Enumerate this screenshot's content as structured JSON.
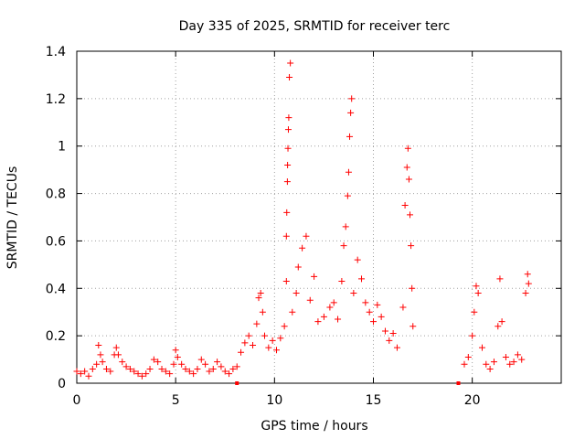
{
  "chart_data": {
    "type": "scatter",
    "title": "Day 335 of 2025, SRMTID for receiver terc",
    "xlabel": "GPS time / hours",
    "ylabel": "SRMTID / TECUs",
    "xlim": [
      0,
      24.5
    ],
    "ylim": [
      0,
      1.4
    ],
    "xticks": [
      0,
      5,
      10,
      15,
      20
    ],
    "yticks": [
      0,
      0.2,
      0.4,
      0.6,
      0.8,
      1,
      1.2,
      1.4
    ],
    "xtick_labels": [
      "0",
      "5",
      "10",
      "15",
      "20"
    ],
    "ytick_labels": [
      "0",
      "0.2",
      "0.4",
      "0.6",
      "0.8",
      "1",
      "1.2",
      "1.4"
    ],
    "grid": true,
    "marker": "plus",
    "color": "#ff0000",
    "series": [
      {
        "name": "SRMTID",
        "points": [
          [
            0.0,
            0.05
          ],
          [
            0.2,
            0.04
          ],
          [
            0.4,
            0.05
          ],
          [
            0.6,
            0.03
          ],
          [
            0.8,
            0.06
          ],
          [
            1.0,
            0.08
          ],
          [
            1.1,
            0.16
          ],
          [
            1.2,
            0.12
          ],
          [
            1.3,
            0.09
          ],
          [
            1.5,
            0.06
          ],
          [
            1.7,
            0.05
          ],
          [
            1.9,
            0.12
          ],
          [
            2.0,
            0.15
          ],
          [
            2.1,
            0.12
          ],
          [
            2.3,
            0.09
          ],
          [
            2.5,
            0.07
          ],
          [
            2.7,
            0.06
          ],
          [
            2.9,
            0.05
          ],
          [
            3.1,
            0.04
          ],
          [
            3.3,
            0.03
          ],
          [
            3.5,
            0.04
          ],
          [
            3.7,
            0.06
          ],
          [
            3.9,
            0.1
          ],
          [
            4.1,
            0.09
          ],
          [
            4.3,
            0.06
          ],
          [
            4.5,
            0.05
          ],
          [
            4.7,
            0.04
          ],
          [
            4.9,
            0.08
          ],
          [
            5.0,
            0.14
          ],
          [
            5.1,
            0.11
          ],
          [
            5.3,
            0.08
          ],
          [
            5.5,
            0.06
          ],
          [
            5.7,
            0.05
          ],
          [
            5.9,
            0.04
          ],
          [
            6.1,
            0.06
          ],
          [
            6.3,
            0.1
          ],
          [
            6.5,
            0.08
          ],
          [
            6.7,
            0.05
          ],
          [
            6.9,
            0.06
          ],
          [
            7.1,
            0.09
          ],
          [
            7.3,
            0.07
          ],
          [
            7.5,
            0.05
          ],
          [
            7.7,
            0.04
          ],
          [
            7.9,
            0.06
          ],
          [
            8.1,
            0.07
          ],
          [
            8.3,
            0.13
          ],
          [
            8.5,
            0.17
          ],
          [
            8.7,
            0.2
          ],
          [
            8.9,
            0.16
          ],
          [
            9.1,
            0.25
          ],
          [
            9.2,
            0.36
          ],
          [
            9.3,
            0.38
          ],
          [
            9.4,
            0.3
          ],
          [
            9.5,
            0.2
          ],
          [
            9.7,
            0.15
          ],
          [
            9.9,
            0.18
          ],
          [
            10.1,
            0.14
          ],
          [
            10.3,
            0.19
          ],
          [
            10.5,
            0.24
          ],
          [
            10.6,
            0.43
          ],
          [
            10.6,
            0.62
          ],
          [
            10.62,
            0.72
          ],
          [
            10.65,
            0.85
          ],
          [
            10.66,
            0.92
          ],
          [
            10.68,
            0.99
          ],
          [
            10.7,
            1.07
          ],
          [
            10.72,
            1.12
          ],
          [
            10.75,
            1.29
          ],
          [
            10.8,
            1.35
          ],
          [
            10.9,
            0.3
          ],
          [
            11.1,
            0.38
          ],
          [
            11.2,
            0.49
          ],
          [
            11.4,
            0.57
          ],
          [
            11.6,
            0.62
          ],
          [
            11.8,
            0.35
          ],
          [
            12.0,
            0.45
          ],
          [
            12.2,
            0.26
          ],
          [
            12.5,
            0.28
          ],
          [
            12.8,
            0.32
          ],
          [
            13.0,
            0.34
          ],
          [
            13.2,
            0.27
          ],
          [
            13.4,
            0.43
          ],
          [
            13.5,
            0.58
          ],
          [
            13.6,
            0.66
          ],
          [
            13.7,
            0.79
          ],
          [
            13.75,
            0.89
          ],
          [
            13.8,
            1.04
          ],
          [
            13.85,
            1.14
          ],
          [
            13.9,
            1.2
          ],
          [
            14.0,
            0.38
          ],
          [
            14.2,
            0.52
          ],
          [
            14.4,
            0.44
          ],
          [
            14.6,
            0.34
          ],
          [
            14.8,
            0.3
          ],
          [
            15.0,
            0.26
          ],
          [
            15.2,
            0.33
          ],
          [
            15.4,
            0.28
          ],
          [
            15.6,
            0.22
          ],
          [
            15.8,
            0.18
          ],
          [
            16.0,
            0.21
          ],
          [
            16.2,
            0.15
          ],
          [
            16.5,
            0.32
          ],
          [
            16.6,
            0.75
          ],
          [
            16.7,
            0.91
          ],
          [
            16.75,
            0.99
          ],
          [
            16.8,
            0.86
          ],
          [
            16.85,
            0.71
          ],
          [
            16.9,
            0.58
          ],
          [
            16.95,
            0.4
          ],
          [
            17.0,
            0.24
          ],
          [
            19.6,
            0.08
          ],
          [
            19.8,
            0.11
          ],
          [
            20.0,
            0.2
          ],
          [
            20.1,
            0.3
          ],
          [
            20.2,
            0.41
          ],
          [
            20.3,
            0.38
          ],
          [
            20.5,
            0.15
          ],
          [
            20.7,
            0.08
          ],
          [
            20.9,
            0.06
          ],
          [
            21.1,
            0.09
          ],
          [
            21.3,
            0.24
          ],
          [
            21.4,
            0.44
          ],
          [
            21.5,
            0.26
          ],
          [
            21.7,
            0.11
          ],
          [
            21.9,
            0.08
          ],
          [
            22.1,
            0.09
          ],
          [
            22.3,
            0.12
          ],
          [
            22.5,
            0.1
          ],
          [
            22.7,
            0.38
          ],
          [
            22.8,
            0.46
          ],
          [
            22.85,
            0.42
          ]
        ]
      }
    ]
  }
}
